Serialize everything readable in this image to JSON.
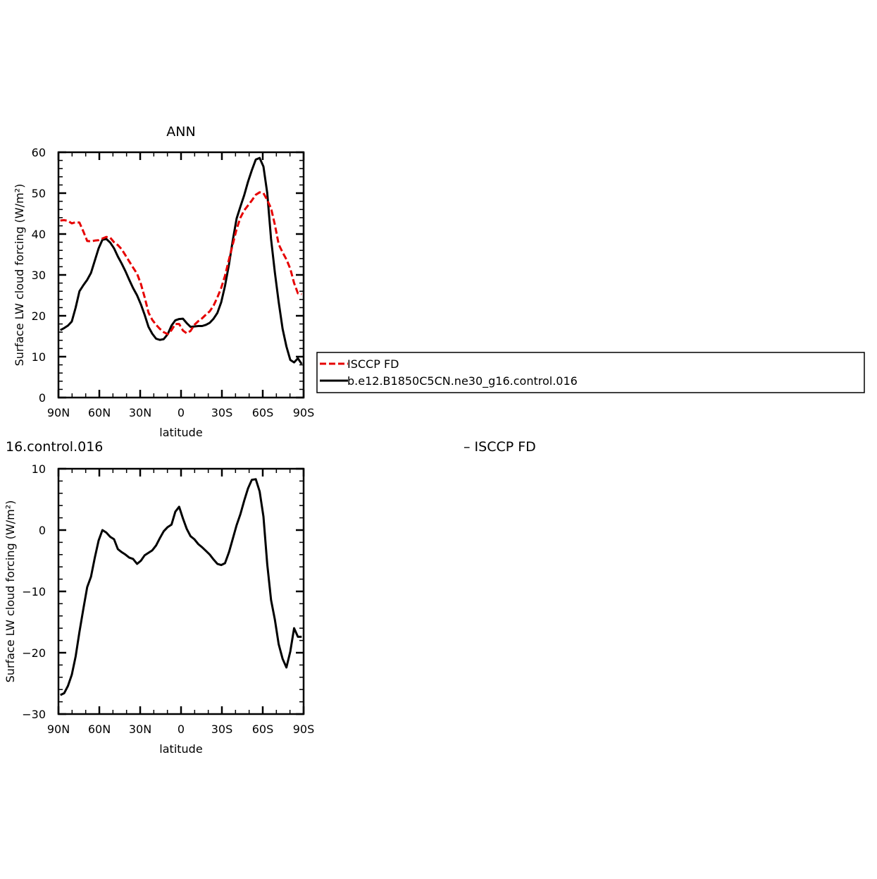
{
  "colors": {
    "model": "#000000",
    "obs": "#e60000"
  },
  "chart_data": [
    {
      "type": "line",
      "title": "ANN",
      "xlabel": "latitude",
      "ylabel": "Surface LW cloud forcing (W/m²)",
      "xlim": [
        90,
        -90
      ],
      "ylim": [
        0,
        60
      ],
      "xticks": [
        90,
        60,
        30,
        0,
        -30,
        -60,
        -90
      ],
      "xticklabels": [
        "90N",
        "60N",
        "30N",
        "0",
        "30S",
        "60S",
        "90S"
      ],
      "yticks": [
        0,
        10,
        20,
        30,
        40,
        50,
        60
      ],
      "yticklabels": [
        "0",
        "10",
        "20",
        "30",
        "40",
        "50",
        "60"
      ],
      "legend": {
        "placement": "right",
        "entries": [
          "ISCCP FD",
          "b.e12.B1850C5CN.ne30_g16.control.016"
        ]
      },
      "series": [
        {
          "name": "b.e12.B1850C5CN.ne30_g16.control.016",
          "style": "solid",
          "color_key": "model",
          "x": [
            88.6,
            85.8,
            83,
            80.2,
            77.4,
            74.6,
            71.7,
            68.9,
            66.1,
            63.3,
            60.5,
            57.7,
            54.9,
            52,
            49.2,
            46.4,
            43.6,
            40.8,
            38,
            35.2,
            32.3,
            29.5,
            26.7,
            23.9,
            21.1,
            18.3,
            15.5,
            12.7,
            9.8,
            7,
            4.2,
            1.4,
            -1.4,
            -4.2,
            -7,
            -9.8,
            -12.7,
            -15.5,
            -18.3,
            -21.1,
            -23.9,
            -26.7,
            -29.5,
            -32.3,
            -35.2,
            -38,
            -40.8,
            -43.6,
            -46.4,
            -49.2,
            -52,
            -54.9,
            -57.7,
            -60.5,
            -63.3,
            -66.1,
            -68.9,
            -71.7,
            -74.6,
            -77.4,
            -80.2,
            -83,
            -85.8,
            -88.6
          ],
          "y": [
            16.5,
            17,
            17.6,
            18.6,
            22,
            26,
            27.5,
            28.8,
            30.5,
            33.5,
            36.5,
            38.6,
            38.8,
            37.9,
            36.5,
            34.5,
            32.8,
            30.9,
            28.8,
            26.8,
            25,
            22.8,
            20.2,
            17.3,
            15.6,
            14.4,
            14.1,
            14.3,
            15.5,
            17.6,
            18.9,
            19.2,
            19.3,
            18.2,
            17.3,
            17.4,
            17.5,
            17.5,
            17.8,
            18.3,
            19.3,
            20.7,
            23.3,
            27.3,
            32.6,
            38.5,
            43.8,
            46.7,
            49.5,
            52.8,
            55.6,
            58.2,
            58.6,
            56.5,
            50,
            38.8,
            30.6,
            23.4,
            16.8,
            12.5,
            9.2,
            8.6,
            9.6,
            8.2
          ]
        },
        {
          "name": "ISCCP FD",
          "style": "dashed",
          "color_key": "obs",
          "x": [
            88.6,
            85.8,
            83,
            80.2,
            77.4,
            74.6,
            71.7,
            68.9,
            66.1,
            63.3,
            60.5,
            57.7,
            54.9,
            52,
            49.2,
            46.4,
            43.6,
            40.8,
            38,
            35.2,
            32.3,
            29.5,
            26.7,
            23.9,
            21.1,
            18.3,
            15.5,
            12.7,
            9.8,
            7,
            4.2,
            1.4,
            -1.4,
            -4.2,
            -7,
            -9.8,
            -12.7,
            -15.5,
            -18.3,
            -21.1,
            -23.9,
            -26.7,
            -29.5,
            -32.3,
            -35.2,
            -38,
            -40.8,
            -43.6,
            -46.4,
            -49.2,
            -52,
            -54.9,
            -57.7,
            -60.5,
            -63.3,
            -66.1,
            -68.9,
            -71.7,
            -74.6,
            -77.4,
            -80.2,
            -83,
            -85.8,
            -88.6
          ],
          "y": [
            43.3,
            43.4,
            43.2,
            42.6,
            42.9,
            42.8,
            40.6,
            38.3,
            38.2,
            38.4,
            38.5,
            38.9,
            39.3,
            39.1,
            38,
            37.3,
            36.3,
            34.8,
            33.3,
            31.8,
            30.3,
            27.8,
            24.5,
            20.8,
            19,
            17.8,
            16.8,
            16,
            15.5,
            16.5,
            18,
            18,
            16.4,
            15.7,
            16.3,
            17.8,
            18.7,
            19.4,
            20.3,
            21.1,
            22.5,
            24.5,
            26.8,
            29.8,
            33.8,
            37.5,
            41.2,
            44,
            45.8,
            47,
            48.2,
            49.6,
            50.2,
            50,
            48.3,
            46.3,
            42.3,
            37.5,
            35.5,
            33.8,
            31.5,
            28,
            25.5,
            25.3
          ]
        }
      ]
    },
    {
      "type": "line",
      "title": "16.control.016",
      "title_right": "– ISCCP FD",
      "xlabel": "latitude",
      "ylabel": "Surface LW cloud forcing (W/m²)",
      "xlim": [
        90,
        -90
      ],
      "ylim": [
        -30,
        10
      ],
      "xticks": [
        90,
        60,
        30,
        0,
        -30,
        -60,
        -90
      ],
      "xticklabels": [
        "90N",
        "60N",
        "30N",
        "0",
        "30S",
        "60S",
        "90S"
      ],
      "yticks": [
        -30,
        -20,
        -10,
        0,
        10
      ],
      "yticklabels": [
        "−30",
        "−20",
        "−10",
        "0",
        "10"
      ],
      "series": [
        {
          "style": "solid",
          "color_key": "model",
          "x": [
            88.6,
            85.8,
            83,
            80.2,
            77.4,
            74.6,
            71.7,
            68.9,
            66.1,
            63.3,
            60.5,
            57.7,
            54.9,
            52,
            49.2,
            46.4,
            43.6,
            40.8,
            38,
            35.2,
            32.3,
            29.5,
            26.7,
            23.9,
            21.1,
            18.3,
            15.5,
            12.7,
            9.8,
            7,
            4.2,
            1.4,
            -1.4,
            -4.2,
            -7,
            -9.8,
            -12.7,
            -15.5,
            -18.3,
            -21.1,
            -23.9,
            -26.7,
            -29.5,
            -32.3,
            -35.2,
            -38,
            -40.8,
            -43.6,
            -46.4,
            -49.2,
            -52,
            -54.9,
            -57.7,
            -60.5,
            -63.3,
            -66.1,
            -68.9,
            -71.7,
            -74.6,
            -77.4,
            -80.2,
            -83,
            -85.8,
            -88.6
          ],
          "y": [
            -26.9,
            -26.6,
            -25.4,
            -23.6,
            -20.6,
            -16.6,
            -12.8,
            -9.3,
            -7.6,
            -4.5,
            -1.7,
            0,
            -0.4,
            -1.1,
            -1.5,
            -3.1,
            -3.6,
            -4,
            -4.5,
            -4.7,
            -5.5,
            -5,
            -4.1,
            -3.7,
            -3.3,
            -2.5,
            -1.3,
            -0.2,
            0.5,
            0.9,
            3,
            3.8,
            1.9,
            0.2,
            -1,
            -1.5,
            -2.3,
            -2.8,
            -3.4,
            -4,
            -4.8,
            -5.5,
            -5.7,
            -5.4,
            -3.6,
            -1.4,
            0.8,
            2.6,
            4.8,
            6.8,
            8.2,
            8.3,
            6.3,
            2.2,
            -5.6,
            -11.4,
            -14.6,
            -18.6,
            -21,
            -22.4,
            -19.8,
            -16,
            -17.4,
            -17.4
          ]
        }
      ]
    }
  ]
}
